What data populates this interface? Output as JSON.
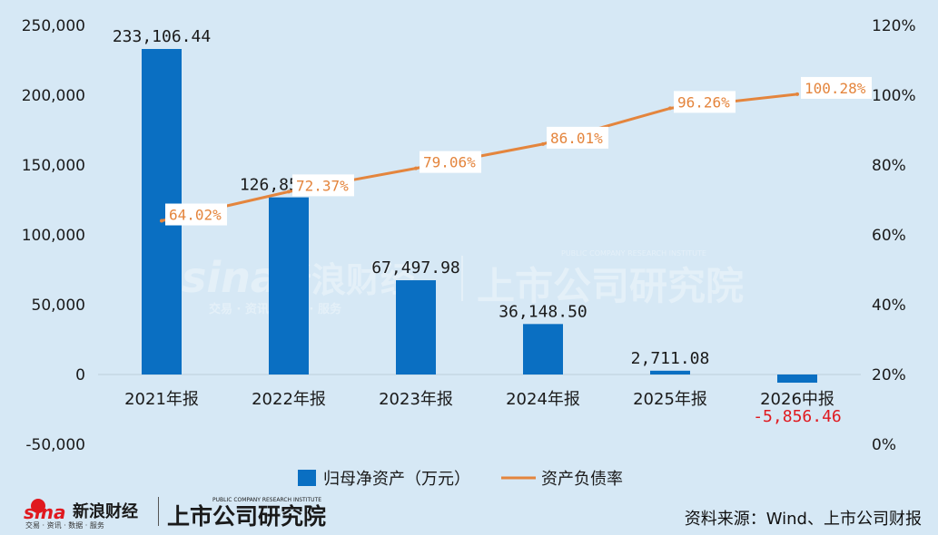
{
  "chart_data": {
    "type": "bar+line",
    "categories": [
      "2021年报",
      "2022年报",
      "2023年报",
      "2024年报",
      "2025年报",
      "2026中报"
    ],
    "series": [
      {
        "name": "归母净资产（万元）",
        "type": "bar",
        "axis": "left",
        "values": [
          233106.44,
          126852.42,
          67497.98,
          36148.5,
          2711.08,
          -5856.46
        ],
        "labels": [
          "233,106.44",
          "126,852.42",
          "67,497.98",
          "36,148.50",
          "2,711.08",
          "-5,856.46"
        ]
      },
      {
        "name": "资产负债率",
        "type": "line",
        "axis": "right",
        "values": [
          64.02,
          72.37,
          79.06,
          86.01,
          96.26,
          100.28
        ],
        "labels": [
          "64.02%",
          "72.37%",
          "79.06%",
          "86.01%",
          "96.26%",
          "100.28%"
        ]
      }
    ],
    "y_left": {
      "ylim": [
        -50000,
        250000
      ],
      "ticks": [
        -50000,
        0,
        50000,
        100000,
        150000,
        200000,
        250000
      ],
      "tick_labels": [
        "-50,000",
        "0",
        "50,000",
        "100,000",
        "150,000",
        "200,000",
        "250,000"
      ]
    },
    "y_right": {
      "ylim": [
        0,
        120
      ],
      "ticks": [
        0,
        20,
        40,
        60,
        80,
        100,
        120
      ],
      "tick_labels": [
        "0%",
        "20%",
        "40%",
        "60%",
        "80%",
        "100%",
        "120%"
      ]
    },
    "legend": "bottom-center",
    "grid": false
  },
  "colors": {
    "background": "#d6e8f5",
    "bar": "#0a6fc2",
    "line": "#e4853d",
    "negative_label": "#e0191f",
    "positive_label": "#1a1a1a"
  },
  "watermark": {
    "sina_text": "sina",
    "sina_cn": "新浪财经",
    "sina_sub": "交易 · 资讯 · 数据 · 服务",
    "institute_cn": "上市公司研究院",
    "institute_en": "PUBLIC COMPANY RESEARCH INSTITUTE"
  },
  "source": "资料来源：Wind、上市公司财报"
}
